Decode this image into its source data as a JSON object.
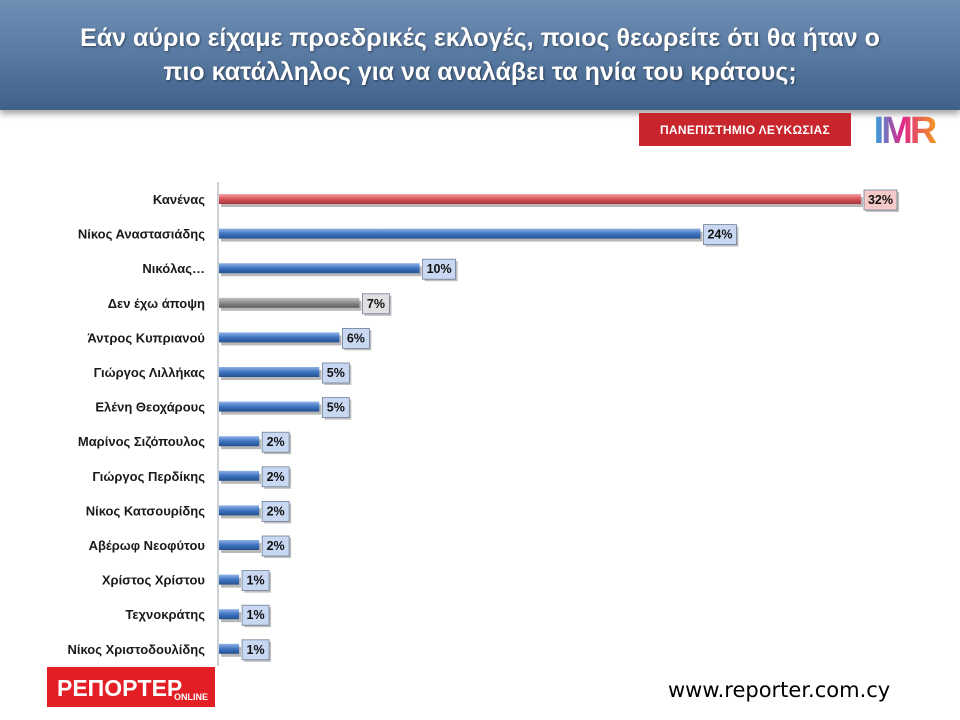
{
  "header": {
    "title_line1": "Εάν αύριο είχαμε προεδρικές εκλογές, ποιος θεωρείτε ότι θα ήταν ο",
    "title_line2": "πιο κατάλληλος για να αναλάβει τα ηνία του κράτους;"
  },
  "university_badge": "ΠΑΝΕΠΙΣΤΗΜΙΟ ΛΕΥΚΩΣΙΑΣ",
  "imr_logo_text": "IMR",
  "reporter_logo": {
    "main": "ΡΕΠΟΡΤΕΡ",
    "sub": "ONLINE"
  },
  "website": "www.reporter.com.cy",
  "chart_data": {
    "type": "bar",
    "orientation": "horizontal",
    "categories": [
      "Κανένας",
      "Νίκος Αναστασιάδης",
      "Νικόλας…",
      "Δεν έχω άποψη",
      "Άντρος Κυπριανού",
      "Γιώργος Λιλλήκας",
      "Ελένη Θεοχάρους",
      "Μαρίνος Σιζόπουλος",
      "Γιώργος Περδίκης",
      "Νίκος Κατσουρίδης",
      "Αβέρωφ Νεοφύτου",
      "Χρίστος Χρίστου",
      "Τεχνοκράτης",
      "Νίκος Χριστοδουλίδης"
    ],
    "values": [
      32,
      24,
      10,
      7,
      6,
      5,
      5,
      2,
      2,
      2,
      2,
      1,
      1,
      1
    ],
    "data_labels": [
      "32%",
      "24%",
      "10%",
      "7%",
      "6%",
      "5%",
      "5%",
      "2%",
      "2%",
      "2%",
      "2%",
      "1%",
      "1%",
      "1%"
    ],
    "unit": "%",
    "bar_styles": [
      "red",
      "blue",
      "blue",
      "gray",
      "blue",
      "blue",
      "blue",
      "blue",
      "blue",
      "blue",
      "blue",
      "blue",
      "blue",
      "blue"
    ],
    "colors": {
      "red": "#d9545a",
      "blue": "#3f74c2",
      "gray": "#8c8c8c",
      "label_fill_red": "#f7caca",
      "label_fill_blue": "#c9d8f2",
      "label_fill_gray": "#e0e0e0"
    },
    "xlim": [
      0,
      32
    ],
    "grid": false,
    "legend": "none",
    "title": "",
    "xlabel": "",
    "ylabel": ""
  }
}
